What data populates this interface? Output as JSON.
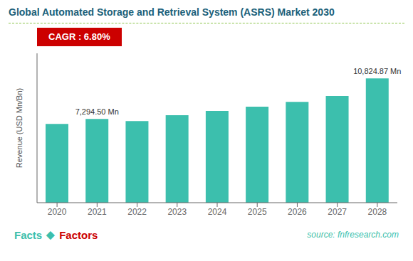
{
  "chart_data": {
    "type": "bar",
    "title": "Global Automated Storage and Retrieval System (ASRS) Market 2030",
    "categories": [
      "2020",
      "2021",
      "2022",
      "2023",
      "2024",
      "2025",
      "2026",
      "2027",
      "2028"
    ],
    "values": [
      6850,
      7294.5,
      7100,
      7620,
      7980,
      8350,
      8780,
      9280,
      10824.87
    ],
    "value_labels": [
      null,
      "7,294.50 Mn",
      null,
      null,
      null,
      null,
      null,
      null,
      "10,824.87 Mn"
    ],
    "color": "#3CBFAD",
    "ylabel": "Revenue (USD Mn/Bn)",
    "ylim": [
      0,
      13000
    ],
    "tick_labels": "x",
    "grid": false,
    "annotations": [
      {
        "text": "CAGR : 6.80%",
        "color": "#ffffff",
        "background": "#cc0000"
      },
      {
        "text": "Facts",
        "color": "#3CBFAD"
      },
      {
        "text": "◆",
        "color": "#3CBFAD"
      },
      {
        "text": "Factors",
        "color": "#cc0000"
      },
      {
        "text": "source: fnfresearch.com",
        "color": "#3CBFAD"
      }
    ]
  }
}
